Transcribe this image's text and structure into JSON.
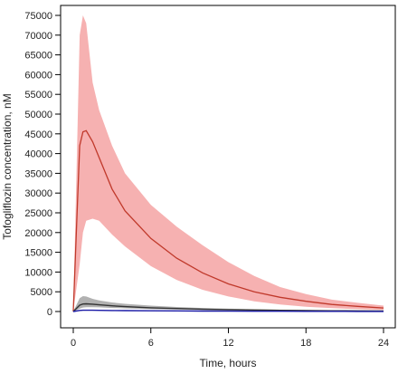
{
  "chart_data": {
    "type": "line",
    "xlabel": "Time, hours",
    "ylabel": "Tofogliflozin concentration, nM",
    "xlim": [
      0,
      24
    ],
    "ylim": [
      0,
      75000
    ],
    "xticks": [
      0,
      6,
      12,
      18,
      24
    ],
    "yticks": [
      0,
      5000,
      10000,
      15000,
      20000,
      25000,
      30000,
      35000,
      40000,
      45000,
      50000,
      55000,
      60000,
      65000,
      70000,
      75000
    ],
    "grid": false,
    "legend": "none",
    "series": [
      {
        "color": "#c0392b",
        "band_color": "#f4a3a3",
        "x": [
          0,
          0.5,
          0.75,
          1.0,
          1.5,
          2,
          3,
          4,
          6,
          8,
          10,
          12,
          14,
          16,
          18,
          20,
          22,
          24
        ],
        "median": [
          0,
          42000,
          45500,
          45800,
          43000,
          39000,
          31000,
          25500,
          18500,
          13500,
          9800,
          7000,
          5000,
          3600,
          2600,
          1800,
          1300,
          900
        ],
        "lower": [
          0,
          12000,
          20000,
          23000,
          23500,
          23000,
          19500,
          16500,
          11500,
          8000,
          5500,
          3800,
          2600,
          1800,
          1200,
          850,
          600,
          400
        ],
        "upper": [
          0,
          70000,
          75000,
          73000,
          58000,
          51000,
          42000,
          35000,
          27000,
          21500,
          16800,
          12500,
          9000,
          6200,
          4400,
          3000,
          2200,
          1500
        ]
      },
      {
        "color": "#333333",
        "band_color": "#9e9e9e",
        "x": [
          0,
          0.5,
          0.75,
          1.0,
          1.5,
          2,
          3,
          4,
          6,
          8,
          10,
          12,
          14,
          16,
          18,
          20,
          22,
          24
        ],
        "median": [
          0,
          1600,
          1900,
          1950,
          1850,
          1700,
          1450,
          1250,
          950,
          750,
          600,
          480,
          380,
          300,
          240,
          190,
          150,
          120
        ],
        "lower": [
          0,
          700,
          1000,
          1100,
          1100,
          1050,
          900,
          800,
          600,
          480,
          380,
          300,
          240,
          190,
          150,
          120,
          95,
          75
        ],
        "upper": [
          0,
          3400,
          3900,
          3800,
          3200,
          2800,
          2300,
          1950,
          1500,
          1150,
          900,
          720,
          570,
          450,
          360,
          290,
          230,
          180
        ]
      },
      {
        "color": "#1a1aa6",
        "band_color": "#8a8ad8",
        "x": [
          0,
          0.5,
          0.75,
          1.0,
          1.5,
          2,
          3,
          4,
          6,
          8,
          10,
          12,
          14,
          16,
          18,
          20,
          22,
          24
        ],
        "median": [
          0,
          280,
          320,
          330,
          310,
          290,
          260,
          230,
          190,
          155,
          125,
          100,
          80,
          65,
          52,
          42,
          34,
          27
        ],
        "lower": [
          0,
          180,
          220,
          230,
          220,
          205,
          185,
          165,
          135,
          110,
          88,
          70,
          56,
          45,
          36,
          29,
          23,
          18
        ],
        "upper": [
          0,
          400,
          440,
          450,
          430,
          400,
          360,
          320,
          260,
          210,
          170,
          140,
          112,
          90,
          72,
          58,
          47,
          38
        ]
      }
    ]
  }
}
